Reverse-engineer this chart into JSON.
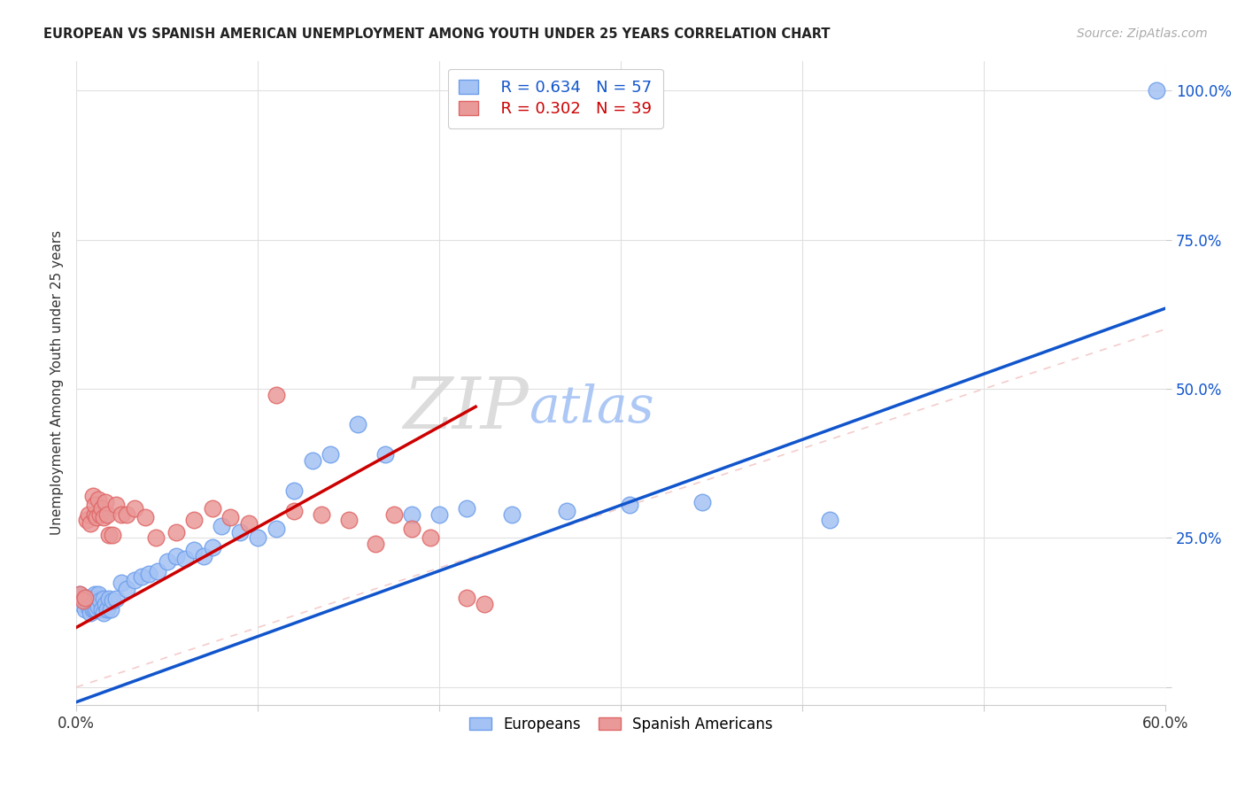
{
  "title": "EUROPEAN VS SPANISH AMERICAN UNEMPLOYMENT AMONG YOUTH UNDER 25 YEARS CORRELATION CHART",
  "source": "Source: ZipAtlas.com",
  "ylabel": "Unemployment Among Youth under 25 years",
  "xlim": [
    0.0,
    0.6
  ],
  "ylim": [
    -0.03,
    1.05
  ],
  "xticks": [
    0.0,
    0.1,
    0.2,
    0.3,
    0.4,
    0.5,
    0.6
  ],
  "xticklabels": [
    "0.0%",
    "",
    "",
    "",
    "",
    "",
    "60.0%"
  ],
  "yticks": [
    0.0,
    0.25,
    0.5,
    0.75,
    1.0
  ],
  "yticklabels": [
    "",
    "25.0%",
    "50.0%",
    "75.0%",
    "100.0%"
  ],
  "legend_blue_r": "R = 0.634",
  "legend_blue_n": "N = 57",
  "legend_pink_r": "R = 0.302",
  "legend_pink_n": "N = 39",
  "legend_blue_label": "Europeans",
  "legend_pink_label": "Spanish Americans",
  "blue_scatter_color": "#a4c2f4",
  "blue_edge_color": "#6d9eeb",
  "pink_scatter_color": "#ea9999",
  "pink_edge_color": "#e06666",
  "blue_line_color": "#1155cc",
  "pink_line_color": "#cc0000",
  "diag_color": "#f4cccc",
  "watermark_zip_color": "#d9d9d9",
  "watermark_atlas_color": "#a4c2f4",
  "blue_scatter_x": [
    0.002,
    0.003,
    0.004,
    0.005,
    0.006,
    0.007,
    0.007,
    0.008,
    0.008,
    0.009,
    0.009,
    0.01,
    0.01,
    0.011,
    0.011,
    0.012,
    0.012,
    0.013,
    0.014,
    0.015,
    0.015,
    0.016,
    0.017,
    0.018,
    0.019,
    0.02,
    0.022,
    0.025,
    0.028,
    0.032,
    0.036,
    0.04,
    0.045,
    0.05,
    0.055,
    0.06,
    0.065,
    0.07,
    0.075,
    0.08,
    0.09,
    0.1,
    0.11,
    0.12,
    0.13,
    0.14,
    0.155,
    0.17,
    0.185,
    0.2,
    0.215,
    0.24,
    0.27,
    0.305,
    0.345,
    0.415,
    0.595
  ],
  "blue_scatter_y": [
    0.155,
    0.14,
    0.148,
    0.13,
    0.145,
    0.15,
    0.135,
    0.145,
    0.125,
    0.148,
    0.13,
    0.155,
    0.13,
    0.148,
    0.13,
    0.155,
    0.135,
    0.145,
    0.13,
    0.148,
    0.125,
    0.14,
    0.13,
    0.148,
    0.13,
    0.145,
    0.148,
    0.175,
    0.165,
    0.18,
    0.185,
    0.19,
    0.195,
    0.21,
    0.22,
    0.215,
    0.23,
    0.22,
    0.235,
    0.27,
    0.26,
    0.25,
    0.265,
    0.33,
    0.38,
    0.39,
    0.44,
    0.39,
    0.29,
    0.29,
    0.3,
    0.29,
    0.295,
    0.305,
    0.31,
    0.28,
    1.0
  ],
  "pink_scatter_x": [
    0.002,
    0.004,
    0.005,
    0.006,
    0.007,
    0.008,
    0.009,
    0.01,
    0.01,
    0.011,
    0.012,
    0.013,
    0.014,
    0.015,
    0.016,
    0.017,
    0.018,
    0.02,
    0.022,
    0.025,
    0.028,
    0.032,
    0.038,
    0.044,
    0.055,
    0.065,
    0.075,
    0.085,
    0.095,
    0.11,
    0.12,
    0.135,
    0.15,
    0.165,
    0.175,
    0.185,
    0.195,
    0.215,
    0.225
  ],
  "pink_scatter_y": [
    0.155,
    0.145,
    0.15,
    0.28,
    0.29,
    0.275,
    0.32,
    0.29,
    0.305,
    0.285,
    0.315,
    0.29,
    0.3,
    0.285,
    0.31,
    0.29,
    0.255,
    0.255,
    0.305,
    0.29,
    0.29,
    0.3,
    0.285,
    0.25,
    0.26,
    0.28,
    0.3,
    0.285,
    0.275,
    0.49,
    0.295,
    0.29,
    0.28,
    0.24,
    0.29,
    0.265,
    0.25,
    0.15,
    0.14
  ],
  "blue_line_x0": 0.0,
  "blue_line_y0": -0.025,
  "blue_line_x1": 0.6,
  "blue_line_y1": 0.635,
  "pink_line_x0": 0.0,
  "pink_line_y0": 0.1,
  "pink_line_x1": 0.22,
  "pink_line_y1": 0.47
}
